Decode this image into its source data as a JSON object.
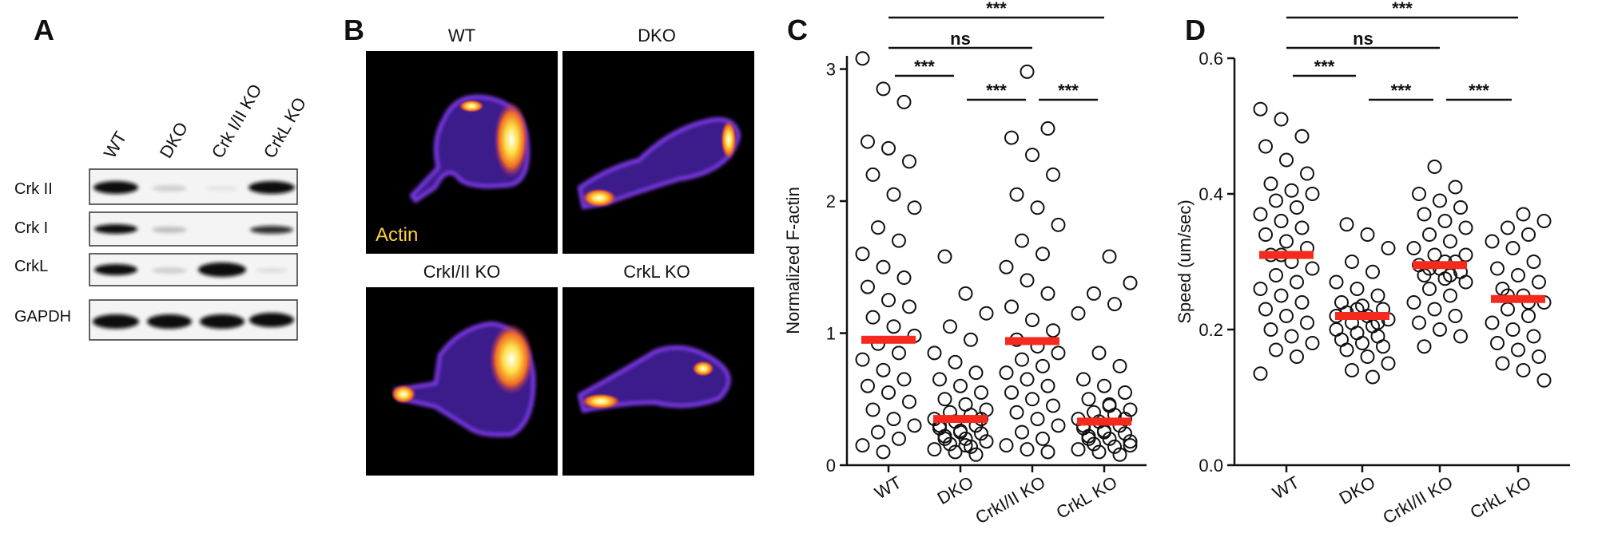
{
  "panel_a": {
    "letter": "A",
    "columns": [
      "WT",
      "DKO",
      "Crk I/II KO",
      "CrkL KO"
    ],
    "rows": [
      "Crk II",
      "Crk I",
      "CrkL",
      "GAPDH"
    ]
  },
  "panel_b": {
    "letter": "B",
    "images": [
      "WT",
      "DKO",
      "CrkI/II KO",
      "CrkL KO"
    ],
    "stain": "Actin"
  },
  "chart_data": [
    {
      "type": "dotplot",
      "panel": "C",
      "ylabel": "Normalized F-actin",
      "categories": [
        "WT",
        "DKO",
        "CrkI/II KO",
        "CrkL KO"
      ],
      "values": [
        [
          3.08,
          2.85,
          2.75,
          2.45,
          2.4,
          2.3,
          2.2,
          2.05,
          1.95,
          1.8,
          1.7,
          1.6,
          1.5,
          1.42,
          1.35,
          1.25,
          1.2,
          1.12,
          1.05,
          0.98,
          0.92,
          0.85,
          0.8,
          0.72,
          0.65,
          0.6,
          0.55,
          0.48,
          0.42,
          0.35,
          0.3,
          0.25,
          0.2,
          0.15,
          0.1
        ],
        [
          1.58,
          1.3,
          1.15,
          1.05,
          0.95,
          0.85,
          0.78,
          0.7,
          0.65,
          0.6,
          0.55,
          0.5,
          0.46,
          0.42,
          0.4,
          0.38,
          0.35,
          0.33,
          0.3,
          0.28,
          0.26,
          0.24,
          0.22,
          0.2,
          0.18,
          0.16,
          0.14,
          0.12,
          0.1,
          0.08,
          0.3,
          0.25,
          0.35,
          0.2,
          0.15
        ],
        [
          2.98,
          2.55,
          2.48,
          2.35,
          2.2,
          2.05,
          1.95,
          1.82,
          1.7,
          1.6,
          1.5,
          1.4,
          1.3,
          1.2,
          1.1,
          1.02,
          0.95,
          0.9,
          0.85,
          0.8,
          0.75,
          0.7,
          0.65,
          0.6,
          0.55,
          0.5,
          0.45,
          0.4,
          0.35,
          0.3,
          0.25,
          0.2,
          0.15,
          0.12,
          0.1
        ],
        [
          1.58,
          1.38,
          1.3,
          1.22,
          1.15,
          0.85,
          0.75,
          0.65,
          0.6,
          0.55,
          0.5,
          0.46,
          0.42,
          0.4,
          0.38,
          0.35,
          0.33,
          0.3,
          0.28,
          0.26,
          0.24,
          0.22,
          0.2,
          0.18,
          0.16,
          0.14,
          0.12,
          0.1,
          0.08,
          0.3,
          0.25,
          0.35,
          0.2,
          0.45,
          0.15
        ]
      ],
      "means": [
        0.95,
        0.35,
        0.94,
        0.33
      ],
      "point_color": "#111111",
      "mean_color": "#f52a1e",
      "ylim": [
        0,
        3.1
      ],
      "yticks": [
        0,
        1,
        2,
        3
      ],
      "comparisons": [
        {
          "between": [
            "WT",
            "CrkL KO"
          ],
          "label": "***"
        },
        {
          "between": [
            "WT",
            "CrkI/II KO"
          ],
          "label": "ns"
        },
        {
          "between": [
            "WT",
            "DKO"
          ],
          "label": "***"
        },
        {
          "between": [
            "DKO",
            "CrkI/II KO"
          ],
          "label": "***"
        },
        {
          "between": [
            "CrkI/II KO",
            "CrkL KO"
          ],
          "label": "***"
        }
      ]
    },
    {
      "type": "dotplot",
      "panel": "D",
      "ylabel": "Speed (um/sec)",
      "categories": [
        "WT",
        "DKO",
        "CrkI/II KO",
        "CrkL KO"
      ],
      "values": [
        [
          0.525,
          0.51,
          0.485,
          0.47,
          0.45,
          0.43,
          0.415,
          0.405,
          0.4,
          0.39,
          0.38,
          0.37,
          0.36,
          0.35,
          0.34,
          0.33,
          0.32,
          0.31,
          0.3,
          0.29,
          0.28,
          0.27,
          0.26,
          0.25,
          0.24,
          0.23,
          0.22,
          0.21,
          0.2,
          0.19,
          0.18,
          0.17,
          0.16,
          0.135,
          0.31
        ],
        [
          0.355,
          0.34,
          0.32,
          0.3,
          0.285,
          0.27,
          0.26,
          0.25,
          0.24,
          0.235,
          0.23,
          0.225,
          0.22,
          0.215,
          0.21,
          0.205,
          0.2,
          0.195,
          0.19,
          0.185,
          0.18,
          0.175,
          0.17,
          0.16,
          0.15,
          0.14,
          0.13,
          0.22,
          0.23,
          0.21
        ],
        [
          0.44,
          0.41,
          0.4,
          0.39,
          0.38,
          0.37,
          0.36,
          0.35,
          0.34,
          0.33,
          0.32,
          0.31,
          0.3,
          0.295,
          0.29,
          0.285,
          0.28,
          0.275,
          0.27,
          0.26,
          0.25,
          0.24,
          0.23,
          0.22,
          0.21,
          0.2,
          0.19,
          0.175,
          0.3,
          0.31,
          0.29,
          0.28
        ],
        [
          0.37,
          0.36,
          0.35,
          0.34,
          0.33,
          0.32,
          0.3,
          0.29,
          0.28,
          0.27,
          0.26,
          0.25,
          0.24,
          0.23,
          0.22,
          0.21,
          0.2,
          0.19,
          0.18,
          0.17,
          0.16,
          0.15,
          0.14,
          0.125,
          0.25,
          0.24
        ]
      ],
      "means": [
        0.31,
        0.22,
        0.295,
        0.245
      ],
      "point_color": "#111111",
      "mean_color": "#f52a1e",
      "ylim": [
        0,
        0.6
      ],
      "yticks": [
        {
          "value": 0,
          "label": "0.0"
        },
        {
          "value": 0.2,
          "label": "0.2"
        },
        {
          "value": 0.4,
          "label": "0.4"
        },
        {
          "value": 0.6,
          "label": "0.6"
        }
      ],
      "comparisons": [
        {
          "between": [
            "WT",
            "CrkL KO"
          ],
          "label": "***"
        },
        {
          "between": [
            "WT",
            "CrkI/II KO"
          ],
          "label": "ns"
        },
        {
          "between": [
            "WT",
            "DKO"
          ],
          "label": "***"
        },
        {
          "between": [
            "DKO",
            "CrkI/II KO"
          ],
          "label": "***"
        },
        {
          "between": [
            "CrkI/II KO",
            "CrkL KO"
          ],
          "label": "***"
        }
      ]
    }
  ]
}
